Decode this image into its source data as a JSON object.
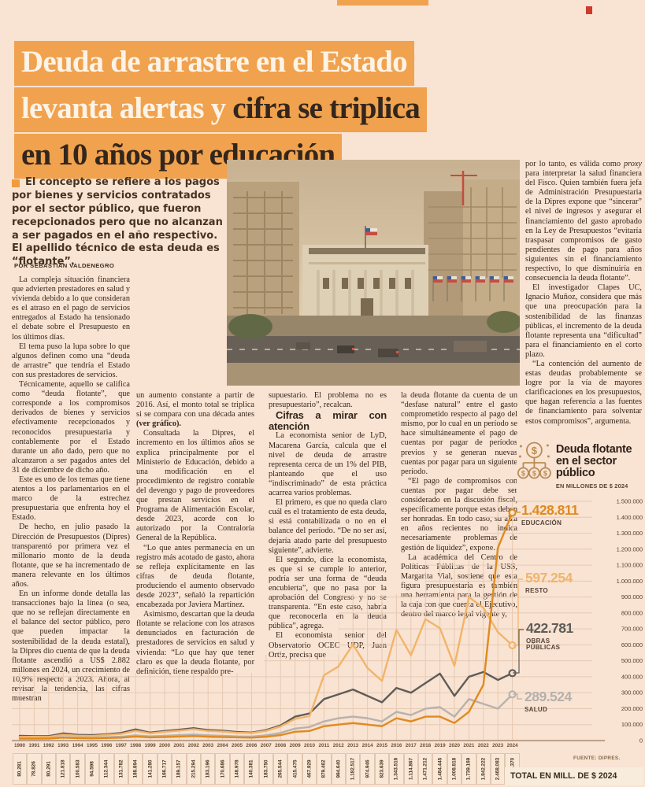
{
  "headline": {
    "line1": "Deuda de arrastre en el Estado",
    "line2_white": "levanta alertas y ",
    "line2_dark": "cifra se triplica",
    "line3": "en 10 años por educación"
  },
  "lead": "El concepto se refiere a los pagos por bienes y servicios contratados por el sector público, que fueron recepcionados pero que no alcanzan a ser pagados en el año respectivo. El apellido técnico de esta deuda es “flotante”.",
  "byline": "POR SEBASTIÁN VALDENEGRO",
  "columns": {
    "c1": [
      "La compleja situación financiera que advierten prestadores en salud y vivienda debido a lo que consideran es el atraso en el pago de servicios entregados al Estado ha tensionado el debate sobre el Presupuesto en los últimos días.",
      "El tema puso la lupa sobre lo que algunos definen como una “deuda de arrastre” que tendría el Estado con sus prestadores de servicios.",
      "Técnicamente, aquello se califica como “deuda flotante”, que corresponde a los compromisos derivados de bienes y servicios efectivamente recepcionados y reconocidos presupuestaria y contablemente por el Estado durante un año dado, pero que no alcanzaron a ser pagados antes del 31 de diciembre de dicho año.",
      "Este es uno de los temas que tiene atentos a los parlamentarios en el marco de la estrechez presupuestaria que enfrenta hoy el Estado.",
      "De hecho, en julio pasado la Dirección de Presupuestos (Dipres) transparentó por primera vez el millonario monto de la deuda flotante, que se ha incrementado de manera relevante en los últimos años.",
      "En un informe donde detalla las transacciones bajo la línea (o sea, que no se reflejan directamente en el balance del sector público, pero que pueden impactar la sostenibilidad de la deuda estatal), la Dipres dio cuenta de que la deuda flotante ascendió a US$ 2.882 millones en 2024, un crecimiento de 10,9% respecto a 2023. Ahora, al revisar la tendencia, las cifras muestran"
    ],
    "c2p1a": "un aumento constante a partir de 2016. Así, el monto total se triplica si se compara con una década antes ",
    "c2p1b": "(ver gráfico).",
    "c2": [
      "Consultada la Dipres, el incremento en los últimos años se explica principalmente por el Ministerio de Educación, debido a una modificación en el procedimiento de registro contable del devengo y pago de proveedores que prestan servicios en el Programa de Alimentación Escolar, desde 2023, acorde con lo autorizado por la Contraloría General de la República.",
      "“Lo que antes permanecía en un registro más acotado de gasto, ahora se refleja explícitamente en las cifras de deuda flotante, produciendo el aumento observado desde 2023”, señaló la repartición encabezada por Javiera Martínez.",
      "Asimismo, descartan que la deuda flotante se relacione con los atrasos denunciados en facturación de prestadores de servicios en salud y vivienda: “Lo que hay que tener claro es que la deuda flotante, por definición, tiene respaldo pre-"
    ],
    "c3p1": "supuestario. El problema no es presupuestario”, recalcan.",
    "c3sub": "Cifras a mirar con atención",
    "c3": [
      "La economista senior de LyD, Macarena García, calcula que el nivel de deuda de arrastre representa cerca de un 1% del PIB, planteando que el uso “indiscriminado” de esta práctica acarrea varios problemas.",
      "El primero, es que no queda claro cuál es el tratamiento de esta deuda, si está contabilizada o no en el balance del período. “De no ser así, dejaría atado parte del presupuesto siguiente”, advierte.",
      "El segundo, dice la economista, es que si se cumple lo anterior, podría ser una forma de “deuda encubierta”, que no pasa por la aprobación del Congreso y no se transparenta. “En este caso, habría que reconocerla en la deuda pública”, agrega.",
      "El economista senior del Observatorio OCEC UDP, Juan Ortiz, precisa que"
    ],
    "c4": [
      "la deuda flotante da cuenta de un “desfase natural” entre el gasto comprometido respecto al pago del mismo, por lo cual en un período se hace simultáneamente el pago de cuentas por pagar de períodos previos y se generan nuevas cuentas por pagar para un siguiente período.",
      "“El pago de compromisos con cuentas por pagar debe ser considerado en la discusión fiscal, específicamente porque estas deben ser honradas. En todo caso, su alza en años recientes no indica necesariamente problemas de gestión de liquidez”, expone.",
      "La académica del Centro de Políticas Públicas de la USS, Margarita Vial, sostiene que esta figura presupuestaria es también una herramienta para la gestión de la caja con que cuenta el Ejecutivo, dentro del marco legal vigente y,"
    ],
    "c5p1a": "por lo tanto, es válida como ",
    "c5p1i": "proxy",
    "c5p1b": " para interpretar la salud financiera del Fisco. Quien también fuera jefa de Administración Presupuestaria de la Dipres expone que “sincerar” el nivel de ingresos y asegurar el financiamiento del gasto aprobado en la Ley de Presupuestos “evitaría traspasar compromisos de gasto pendientes de pago para años siguientes sin el financiamiento respectivo, lo que disminuiría en consecuencia la deuda flotante”.",
    "c5": [
      "El investigador Clapes UC, Ignacio Muñoz, considera que más que una preocupación para la sostenibilidad de las finanzas públicas, el incremento de la deuda flotante representa una “dificultad” para el financiamiento en el corto plazo.",
      "“La contención del aumento de estas deudas probablemente se logre por la vía de mayores clarificaciones en los presupuestos, que hagan referencia a las fuentes de financiamiento para solventar estos compromisos”, argumenta."
    ]
  },
  "chart": {
    "title_l1": "Deuda flotante",
    "title_l2": "en el sector público",
    "subtitle": "EN MILLONES DE $ 2024",
    "source": "FUENTE: DIPRES.",
    "total_caption": "TOTAL EN MILL. DE $ 2024",
    "labels": [
      {
        "value": "1.428.811",
        "name": "EDUCACIÓN"
      },
      {
        "value": "597.254",
        "name": "RESTO"
      },
      {
        "value": "422.781",
        "name": "OBRAS PÚBLICAS"
      },
      {
        "value": "289.524",
        "name": "SALUD"
      }
    ],
    "accent_orange": "#f0a24e",
    "page_bg": "#f9e3d3"
  },
  "chart_data": {
    "type": "line",
    "title": "Deuda flotante en el sector público",
    "ylabel": "millones de $ 2024",
    "ylim": [
      0,
      1500000
    ],
    "grid": true,
    "x": [
      1990,
      1991,
      1992,
      1993,
      1994,
      1995,
      1996,
      1997,
      1998,
      1999,
      2000,
      2001,
      2002,
      2003,
      2004,
      2005,
      2006,
      2007,
      2008,
      2009,
      2010,
      2011,
      2012,
      2013,
      2014,
      2015,
      2016,
      2017,
      2018,
      2019,
      2020,
      2021,
      2022,
      2023,
      2024
    ],
    "yticks": [
      "1.500.000",
      "1.400.000",
      "1.300.000",
      "1.200.000",
      "1.100.000",
      "1.000.000",
      "900.000",
      "800.000",
      "700.000",
      "600.000",
      "500.000",
      "400.000",
      "300.000",
      "200.000",
      "100.000",
      "0"
    ],
    "series": [
      {
        "name": "SALUD",
        "color": "#b7b2ac",
        "final_label": "289.524",
        "values": [
          15000,
          15000,
          16000,
          22000,
          19000,
          18000,
          21000,
          24000,
          33000,
          26000,
          30000,
          34000,
          38000,
          33000,
          30000,
          26000,
          25000,
          33000,
          48000,
          75000,
          85000,
          120000,
          140000,
          150000,
          140000,
          120000,
          180000,
          160000,
          200000,
          210000,
          150000,
          260000,
          230000,
          200000,
          289524
        ]
      },
      {
        "name": "OBRAS PÚBLICAS",
        "color": "#5f5c58",
        "final_label": "422.781",
        "values": [
          30000,
          28000,
          28000,
          45000,
          36000,
          34000,
          40000,
          48000,
          70000,
          50000,
          60000,
          68000,
          78000,
          66000,
          62000,
          54000,
          50000,
          66000,
          95000,
          150000,
          170000,
          260000,
          290000,
          320000,
          280000,
          240000,
          330000,
          300000,
          360000,
          420000,
          280000,
          400000,
          430000,
          380000,
          422781
        ]
      },
      {
        "name": "RESTO",
        "color": "#f2b469",
        "final_label": "597.254",
        "values": [
          23281,
          23826,
          23291,
          36818,
          30583,
          28598,
          35344,
          41782,
          60894,
          45280,
          54717,
          62157,
          71294,
          60196,
          56686,
          48978,
          47381,
          60750,
          88544,
          135475,
          152929,
          409462,
          464640,
          602517,
          454946,
          373639,
          693516,
          534867,
          761212,
          704445,
          468818,
          899169,
          832222,
          680000,
          597254
        ]
      },
      {
        "name": "EDUCACIÓN",
        "color": "#e08a1e",
        "final_label": "1.428.811",
        "values": [
          12000,
          12000,
          13000,
          18000,
          15000,
          14000,
          16000,
          18000,
          25000,
          20000,
          22000,
          25000,
          28000,
          24000,
          22000,
          20000,
          18000,
          24000,
          34000,
          55000,
          60000,
          90000,
          100000,
          110000,
          100000,
          90000,
          140000,
          120000,
          150000,
          150000,
          110000,
          180000,
          350000,
          1208083,
          1428811
        ]
      }
    ],
    "totals_labels": [
      "80.281",
      "78.826",
      "80.291",
      "121.818",
      "100.583",
      "94.598",
      "112.344",
      "131.782",
      "188.894",
      "141.280",
      "166.717",
      "189.157",
      "215.294",
      "183.196",
      "170.686",
      "148.978",
      "140.381",
      "183.750",
      "265.544",
      "415.475",
      "467.929",
      "879.462",
      "994.640",
      "1.182.517",
      "974.946",
      "823.639",
      "1.343.516",
      "1.114.867",
      "1.471.212",
      "1.484.445",
      "1.008.818",
      "1.739.169",
      "1.842.222",
      "2.468.083",
      "2.738.370"
    ]
  }
}
